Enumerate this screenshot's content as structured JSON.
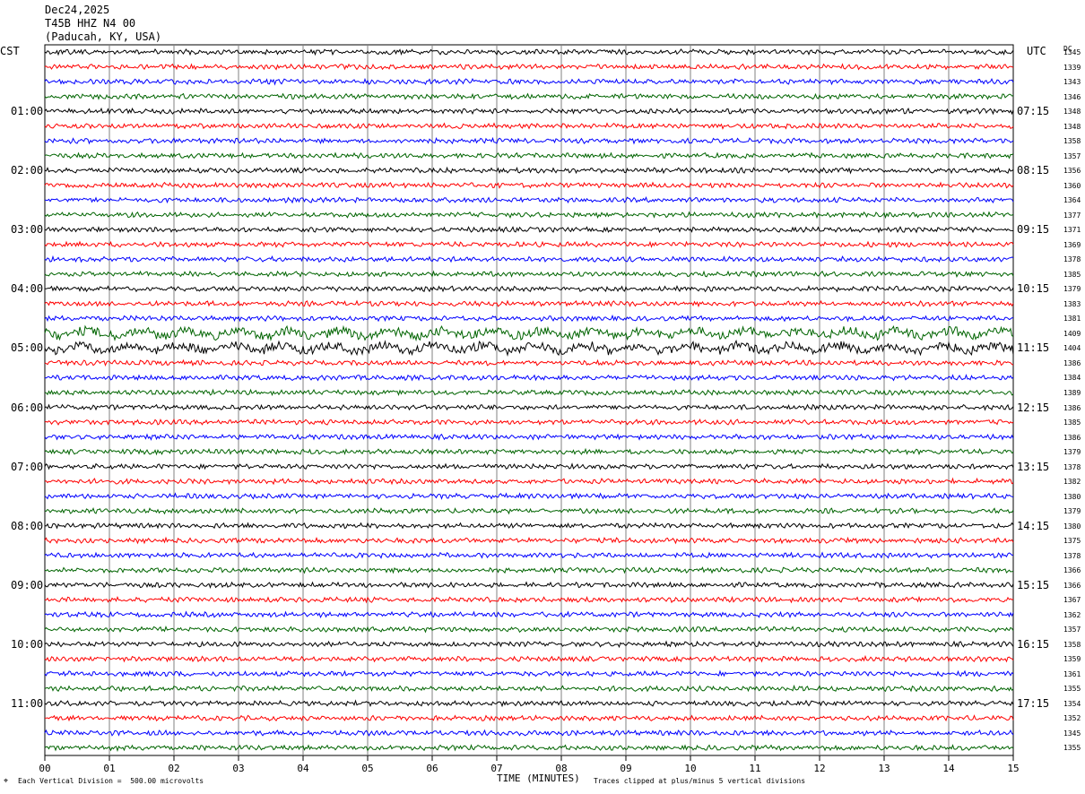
{
  "header": {
    "date": "Dec24,2025",
    "station": "T45B HHZ N4 00",
    "location": "(Paducah, KY, USA)"
  },
  "left_tz": "CST",
  "right_tz": "UTC",
  "dc_label": "DC",
  "footer": {
    "xlabel": "TIME (MINUTES)",
    "scale_note": "Each Vertical Division =  500.00 microvolts",
    "clip_note": "Traces clipped at plus/minus 5 vertical divisions"
  },
  "colors": {
    "trace_cycle": [
      "#000000",
      "#ff0000",
      "#0000ff",
      "#006400"
    ],
    "grid": "#808080"
  },
  "chart_data": {
    "type": "line",
    "title": "T45B HHZ N4 00",
    "xlabel": "TIME (MINUTES)",
    "xlim": [
      0,
      15
    ],
    "x_ticks": [
      "00",
      "01",
      "02",
      "03",
      "04",
      "05",
      "06",
      "07",
      "08",
      "09",
      "10",
      "11",
      "12",
      "13",
      "14",
      "15"
    ],
    "left_time_labels": [
      "01:00",
      "02:00",
      "03:00",
      "04:00",
      "05:00",
      "06:00",
      "07:00",
      "08:00",
      "09:00",
      "10:00",
      "11:00"
    ],
    "right_time_labels": [
      "07:15",
      "08:15",
      "09:15",
      "10:15",
      "11:15",
      "12:15",
      "13:15",
      "14:15",
      "15:15",
      "16:15",
      "17:15"
    ],
    "dc_offsets": [
      1345,
      1339,
      1343,
      1346,
      1348,
      1348,
      1358,
      1357,
      1356,
      1360,
      1364,
      1377,
      1371,
      1369,
      1378,
      1385,
      1379,
      1383,
      1381,
      1409,
      1404,
      1386,
      1384,
      1389,
      1386,
      1385,
      1386,
      1379,
      1378,
      1382,
      1380,
      1379,
      1380,
      1375,
      1378,
      1366,
      1366,
      1367,
      1362,
      1357,
      1358,
      1359,
      1361,
      1355,
      1354,
      1352,
      1345,
      1355
    ],
    "n_traces": 48,
    "trace_interval_minutes": 15
  }
}
